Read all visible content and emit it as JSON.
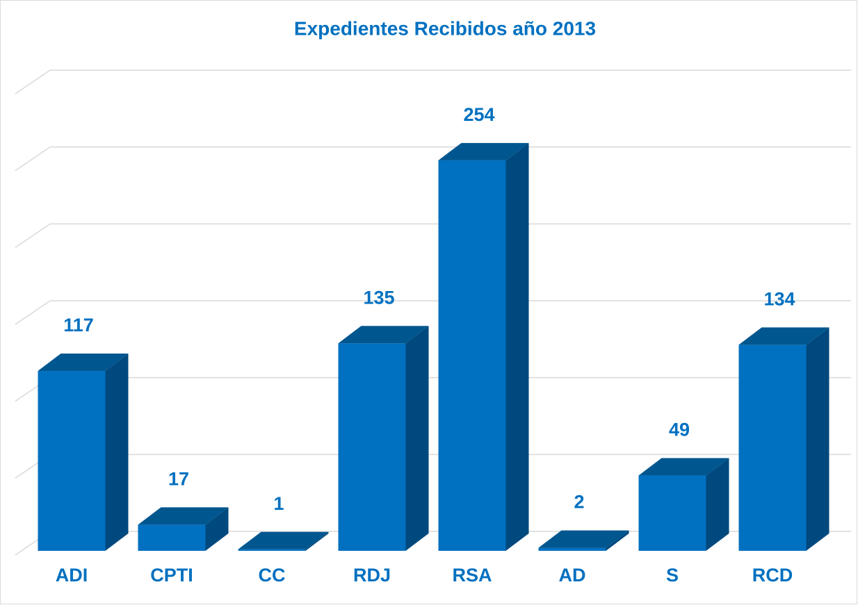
{
  "chart_data": {
    "type": "bar3d",
    "title": "Expedientes Recibidos año 2013",
    "categories": [
      "ADI",
      "CPTI",
      "CC",
      "RDJ",
      "RSA",
      "AD",
      "S",
      "RCD"
    ],
    "values": [
      117,
      17,
      1,
      135,
      254,
      2,
      49,
      134
    ],
    "color": "#0070c0",
    "ylim": [
      0,
      300
    ],
    "yticks": [
      0,
      50,
      100,
      150,
      200,
      250,
      300
    ],
    "grid": true
  }
}
